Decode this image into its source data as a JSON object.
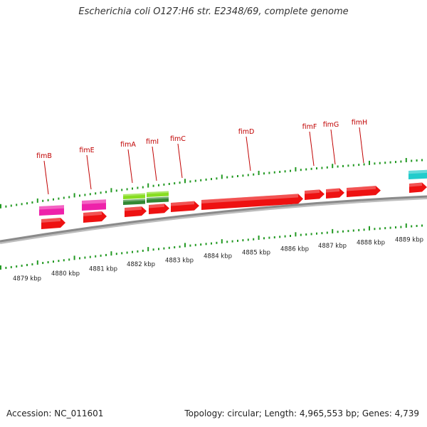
{
  "title": "Escherichia coli O127:H6 str. E2348/69, complete genome",
  "footer": {
    "accession": "Accession: NC_011601",
    "info": "Topology: circular; Length: 4,965,553 bp; Genes: 4,739"
  },
  "genes": [
    {
      "name": "fimB"
    },
    {
      "name": "fimE"
    },
    {
      "name": "fimA"
    },
    {
      "name": "fimI"
    },
    {
      "name": "fimC"
    },
    {
      "name": "fimD"
    },
    {
      "name": "fimF"
    },
    {
      "name": "fimG"
    },
    {
      "name": "fimH"
    }
  ],
  "scale": {
    "unit": "kbp",
    "labels": [
      "4879 kbp",
      "4880 kbp",
      "4881 kbp",
      "4882 kbp",
      "4883 kbp",
      "4884 kbp",
      "4885 kbp",
      "4886 kbp",
      "4887 kbp",
      "4888 kbp",
      "4889 kbp"
    ]
  },
  "colors": {
    "gene_red": "#ee1111",
    "gene_magenta": "#ee22aa",
    "gene_lightgreen": "#88dd22",
    "gene_darkgreen": "#338833",
    "gene_cyan": "#22cccc",
    "tick_green": "#229922",
    "backbone": "#8a8a8a",
    "label_red": "#c00000"
  }
}
